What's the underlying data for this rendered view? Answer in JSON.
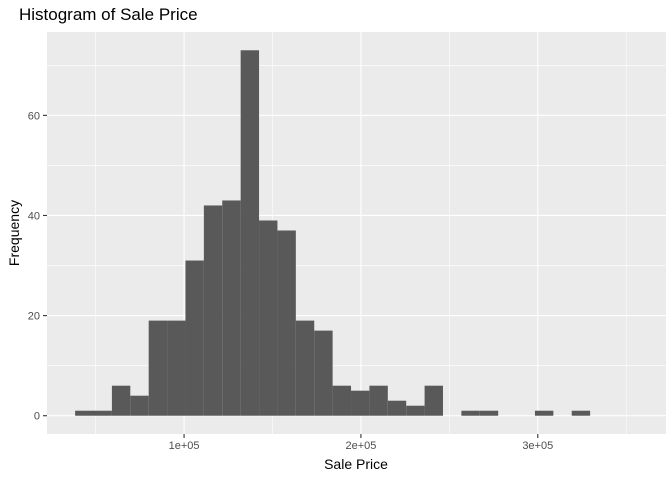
{
  "chart_data": {
    "type": "bar",
    "subtype": "histogram",
    "title": "Histogram of Sale Price",
    "xlabel": "Sale Price",
    "ylabel": "Frequency",
    "xlim": [
      22500,
      372500
    ],
    "ylim": [
      -3.65,
      76.65
    ],
    "x_ticks": [
      {
        "value": 100000,
        "label": "1e+05"
      },
      {
        "value": 200000,
        "label": "2e+05"
      },
      {
        "value": 300000,
        "label": "3e+05"
      }
    ],
    "y_ticks": [
      {
        "value": 0,
        "label": "0"
      },
      {
        "value": 20,
        "label": "20"
      },
      {
        "value": 40,
        "label": "40"
      },
      {
        "value": 60,
        "label": "60"
      }
    ],
    "bin_width": 10400,
    "bin_start": 38400,
    "bin_counts": [
      1,
      1,
      6,
      4,
      19,
      19,
      31,
      42,
      43,
      73,
      39,
      37,
      19,
      17,
      6,
      5,
      6,
      3,
      2,
      6,
      0,
      1,
      1,
      0,
      0,
      1,
      0,
      1
    ],
    "grid": true,
    "legend": "none",
    "colors": {
      "bar": "#595959",
      "panel": "#ebebeb",
      "grid_major": "#ffffff",
      "tick_text": "#4d4d4d"
    }
  }
}
